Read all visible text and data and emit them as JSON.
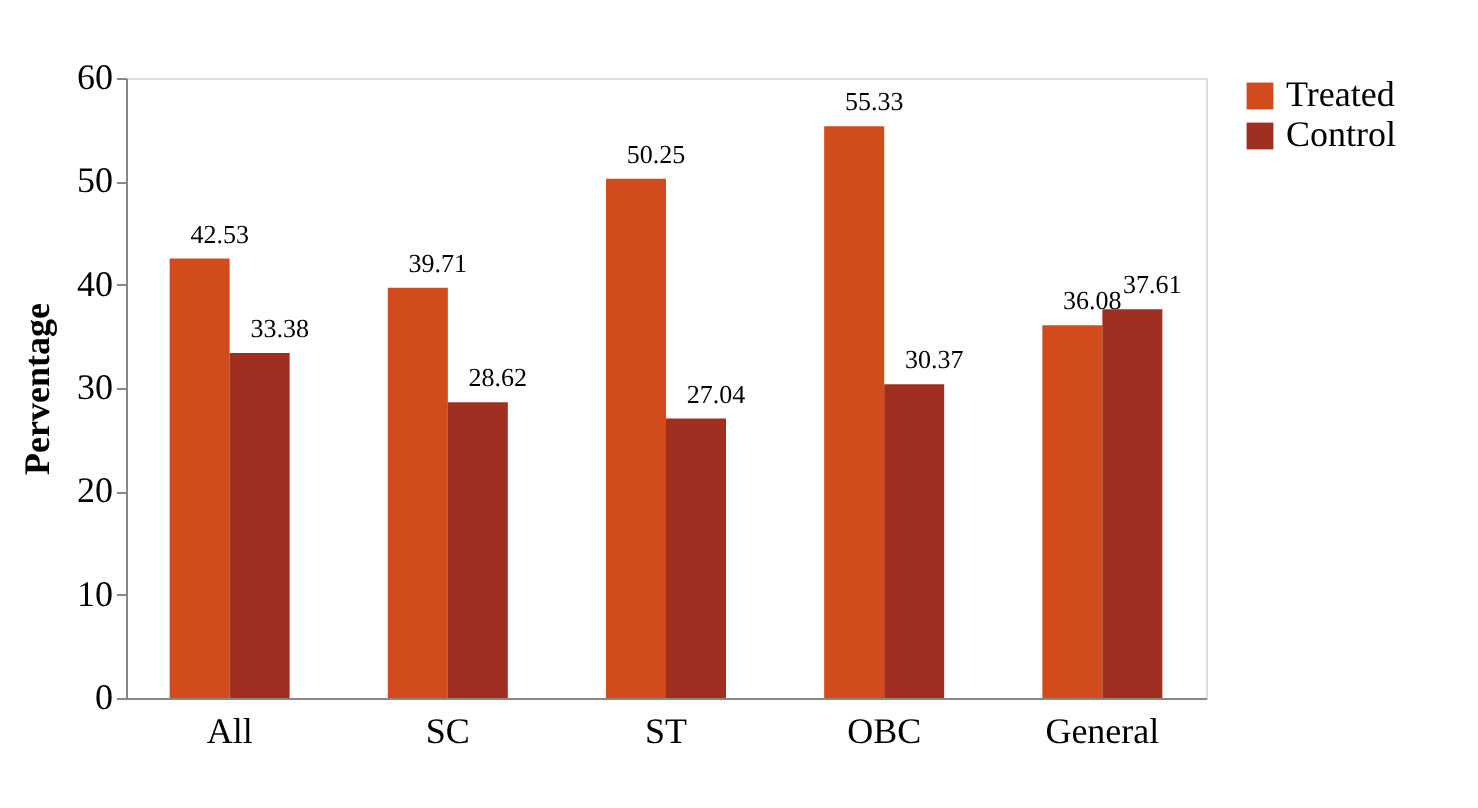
{
  "chart_data": {
    "type": "bar",
    "ylabel": "Perventage",
    "categories": [
      "All",
      "SC",
      "ST",
      "OBC",
      "General"
    ],
    "series": [
      {
        "name": "Treated",
        "color": "#d24b1c",
        "values": [
          42.53,
          39.71,
          50.25,
          55.33,
          36.08
        ]
      },
      {
        "name": "Control",
        "color": "#a02f22",
        "values": [
          33.38,
          28.62,
          27.04,
          30.37,
          37.61
        ]
      }
    ],
    "ylim": [
      0,
      60
    ],
    "yticks": [
      0,
      10,
      20,
      30,
      40,
      50,
      60
    ],
    "grid": false,
    "legend": "right",
    "data_labels": true
  }
}
